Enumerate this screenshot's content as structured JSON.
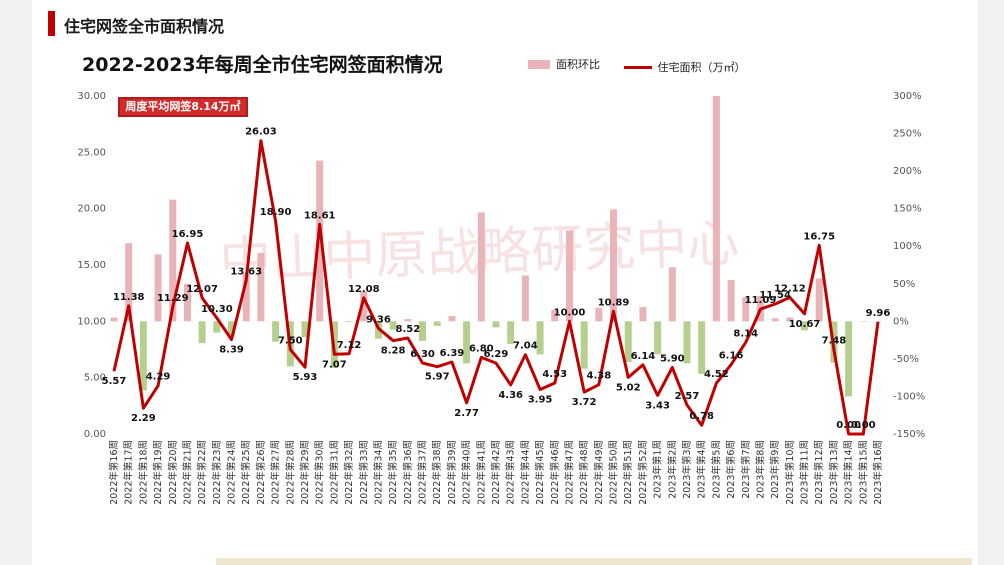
{
  "header": {
    "title": "住宅网签全市面积情况"
  },
  "chart_data": {
    "type": "bar+line",
    "title": "2022-2023年每周全市住宅网签面积情况",
    "annotation": "周度平均网签8.14万㎡",
    "watermark": "中山中原战略研究中心",
    "y_left": {
      "ylim": [
        0,
        30
      ],
      "ticks": [
        "0.00",
        "5.00",
        "10.00",
        "15.00",
        "20.00",
        "25.00",
        "30.00"
      ]
    },
    "y_right": {
      "ylim": [
        -150,
        300
      ],
      "ticks": [
        "-150%",
        "-100%",
        "-50%",
        "0%",
        "50%",
        "100%",
        "150%",
        "200%",
        "250%",
        "300%"
      ]
    },
    "colors": {
      "line": "#c00000",
      "bar_positive": "#e8b4b8",
      "bar_negative": "#b5cf8e"
    },
    "categories": [
      "2022年第16周",
      "2022年第17周",
      "2022年第18周",
      "2022年第19周",
      "2022年第20周",
      "2022年第21周",
      "2022年第22周",
      "2022年第23周",
      "2022年第24周",
      "2022年第25周",
      "2022年第26周",
      "2022年第27周",
      "2022年第28周",
      "2022年第29周",
      "2022年第30周",
      "2022年第31周",
      "2022年第32周",
      "2022年第33周",
      "2022年第34周",
      "2022年第35周",
      "2022年第36周",
      "2022年第37周",
      "2022年第38周",
      "2022年第39周",
      "2022年第40周",
      "2022年第41周",
      "2022年第42周",
      "2022年第43周",
      "2022年第44周",
      "2022年第45周",
      "2022年第46周",
      "2022年第47周",
      "2022年第48周",
      "2022年第49周",
      "2022年第50周",
      "2022年第51周",
      "2022年第52周",
      "2023年第1周",
      "2023年第2周",
      "2023年第3周",
      "2023年第4周",
      "2023年第5周",
      "2023年第6周",
      "2023年第7周",
      "2023年第8周",
      "2023年第9周",
      "2023年第10周",
      "2023年第11周",
      "2023年第12周",
      "2023年第13周",
      "2023年第14周",
      "2023年第15周",
      "2023年第16周"
    ],
    "series": [
      {
        "name": "面积环比",
        "type": "bar",
        "axis": "right",
        "values": [
          5,
          104,
          -92,
          89,
          162,
          50,
          -29,
          -15,
          -18,
          63,
          91,
          -27,
          -60,
          -21,
          214,
          -62,
          -1,
          40,
          -23,
          -11,
          3,
          -26,
          -6,
          7,
          -56,
          145,
          -8,
          -30,
          61,
          -44,
          15,
          121,
          -63,
          18,
          149,
          -54,
          19,
          -44,
          72,
          -56,
          -70,
          300,
          55,
          32,
          34,
          4,
          5,
          -12,
          57,
          -55,
          -100,
          0,
          0
        ]
      },
      {
        "name": "住宅面积（万㎡）",
        "type": "line",
        "axis": "left",
        "values": [
          5.57,
          11.38,
          2.29,
          4.29,
          11.29,
          16.95,
          12.07,
          10.3,
          8.39,
          13.63,
          26.03,
          18.9,
          7.5,
          5.93,
          18.61,
          7.07,
          7.12,
          12.08,
          9.36,
          8.28,
          8.52,
          6.3,
          5.97,
          6.39,
          2.77,
          6.8,
          6.29,
          4.36,
          7.04,
          3.95,
          4.53,
          10.0,
          3.72,
          4.38,
          10.89,
          5.02,
          6.14,
          3.43,
          5.9,
          2.57,
          0.78,
          4.52,
          6.16,
          8.14,
          11.09,
          11.54,
          12.12,
          10.67,
          16.75,
          7.48,
          0.0,
          0.0,
          9.96
        ],
        "labels": [
          "5.57",
          "11.38",
          "2.29",
          "4.29",
          "11.29",
          "16.95",
          "12.07",
          "10.30",
          "8.39",
          "13.63",
          "26.03",
          "18.90",
          "7.50",
          "5.93",
          "18.61",
          "7.07",
          "7.12",
          "12.08",
          "9.36",
          "8.28",
          "8.52",
          "6.30",
          "5.97",
          "6.39",
          "2.77",
          "6.80",
          "6.29",
          "4.36",
          "7.04",
          "3.95",
          "4.53",
          "10.00",
          "3.72",
          "4.38",
          "10.89",
          "5.02",
          "6.14",
          "3.43",
          "5.90",
          "2.57",
          "0.78",
          "4.52",
          "6.16",
          "8.14",
          "11.09",
          "11.54",
          "12.12",
          "10.67",
          "16.75",
          "7.48",
          "0.00",
          "0.00",
          "9.96"
        ]
      }
    ]
  }
}
